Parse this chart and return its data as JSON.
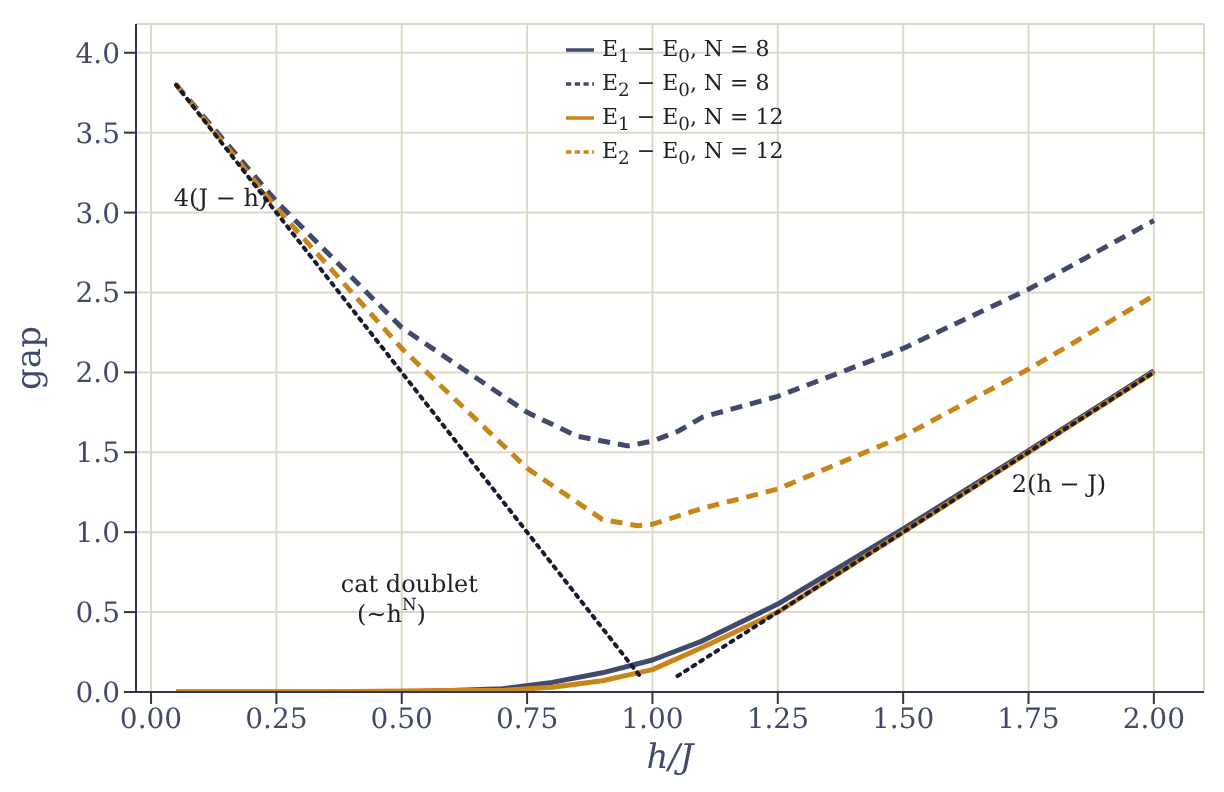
{
  "chart_data": {
    "type": "line",
    "xlabel": "h/J",
    "ylabel": "gap",
    "xlim": [
      -0.03,
      2.1
    ],
    "ylim": [
      0,
      4.18
    ],
    "xticks": [
      {
        "value": 0,
        "label": "0.00"
      },
      {
        "value": 0.25,
        "label": "0.25"
      },
      {
        "value": 0.5,
        "label": "0.50"
      },
      {
        "value": 0.75,
        "label": "0.75"
      },
      {
        "value": 1,
        "label": "1.00"
      },
      {
        "value": 1.25,
        "label": "1.25"
      },
      {
        "value": 1.5,
        "label": "1.50"
      },
      {
        "value": 1.75,
        "label": "1.75"
      },
      {
        "value": 2,
        "label": "2.00"
      }
    ],
    "yticks": [
      {
        "value": 0,
        "label": "0.0"
      },
      {
        "value": 0.5,
        "label": "0.5"
      },
      {
        "value": 1,
        "label": "1.0"
      },
      {
        "value": 1.5,
        "label": "1.5"
      },
      {
        "value": 2,
        "label": "2.0"
      },
      {
        "value": 2.5,
        "label": "2.5"
      },
      {
        "value": 3,
        "label": "3.0"
      },
      {
        "value": 3.5,
        "label": "3.5"
      },
      {
        "value": 4,
        "label": "4.0"
      }
    ],
    "grid": true,
    "legend": "top",
    "marker": "none",
    "series": [
      {
        "name": "E$_{1}$ − E$_{0}$, N = 8",
        "color": "#414a6b",
        "line_style": "solid",
        "x": [
          0.05,
          0.3,
          0.5,
          0.6,
          0.7,
          0.8,
          0.9,
          1.0,
          1.1,
          1.25,
          1.5,
          1.75,
          2.0
        ],
        "values": [
          0,
          0,
          0,
          0.01,
          0.02,
          0.06,
          0.12,
          0.2,
          0.32,
          0.55,
          1.02,
          1.51,
          2.01
        ]
      },
      {
        "name": "E$_{2}$ − E$_{0}$, N = 8",
        "color": "#414a6b",
        "line_style": "dashed",
        "x": [
          0.05,
          0.25,
          0.5,
          0.75,
          0.85,
          0.95,
          1.0,
          1.05,
          1.1,
          1.25,
          1.5,
          1.75,
          2.0
        ],
        "values": [
          3.8,
          3.07,
          2.28,
          1.75,
          1.6,
          1.54,
          1.57,
          1.63,
          1.72,
          1.85,
          2.15,
          2.52,
          2.95
        ]
      },
      {
        "name": "E$_{1}$ − E$_{0}$, N = 12",
        "color": "#c8861a",
        "line_style": "solid",
        "x": [
          0.05,
          0.3,
          0.6,
          0.7,
          0.8,
          0.9,
          1.0,
          1.1,
          1.25,
          1.5,
          1.75,
          2.0
        ],
        "values": [
          0,
          0,
          0.01,
          0.01,
          0.03,
          0.07,
          0.14,
          0.28,
          0.5,
          1.0,
          1.5,
          2.0
        ]
      },
      {
        "name": "E$_{2}$ − E$_{0}$, N = 12",
        "color": "#c8861a",
        "line_style": "dashed",
        "x": [
          0.05,
          0.25,
          0.5,
          0.75,
          0.9,
          0.97,
          1.0,
          1.1,
          1.25,
          1.5,
          1.75,
          2.0
        ],
        "values": [
          3.8,
          3.03,
          2.15,
          1.4,
          1.08,
          1.04,
          1.05,
          1.15,
          1.27,
          1.6,
          2.02,
          2.48
        ]
      },
      {
        "color": "#1a1a2e",
        "line_style": "dotted",
        "x": [
          0.05,
          0.98
        ],
        "values": [
          3.8,
          0.08
        ]
      },
      {
        "color": "#1a1a2e",
        "line_style": "dotted",
        "x": [
          1.05,
          2.0
        ],
        "values": [
          0.1,
          2.0
        ]
      }
    ],
    "annotations": [
      "4(J − h)",
      "2(h − J)",
      "cat doublet",
      "(∼h$^{N}$)"
    ]
  }
}
